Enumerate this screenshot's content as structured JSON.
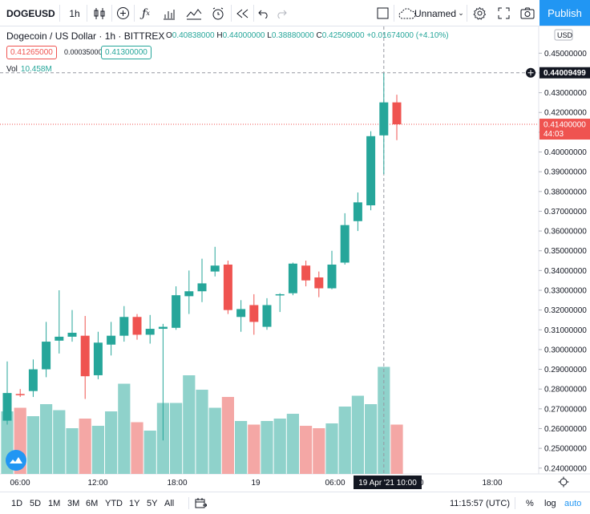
{
  "toolbar": {
    "symbol": "DOGEUSD",
    "interval": "1h",
    "layout_name": "Unnamed",
    "publish_label": "Publish",
    "icons": [
      "candles-icon",
      "add-compare-icon",
      "indicators-icon",
      "financials-icon",
      "templates-icon",
      "alert-icon",
      "replay-icon",
      "undo-icon",
      "redo-icon",
      "layout-square-icon",
      "cloud-icon",
      "settings-icon",
      "fullscreen-icon",
      "snapshot-icon"
    ]
  },
  "legend": {
    "title": "Dogecoin / US Dollar · 1h · BITTREX",
    "o_key": "O",
    "o": "0.40838000",
    "h_key": "H",
    "h": "0.44000000",
    "l_key": "L",
    "l": "0.38880000",
    "c_key": "C",
    "c": "0.42509000",
    "change": "+0.01674000 (+4.10%)",
    "sell_price": "0.41265000",
    "spread": "0.00035000",
    "buy_price": "0.41300000",
    "vol_label": "Vol",
    "vol_value": "10.458M"
  },
  "price_scale": {
    "currency": "USD",
    "crosshair_price": "0.44009499",
    "last_price": "0.41400000",
    "countdown": "44:03"
  },
  "colors": {
    "up": "#26a69a",
    "down": "#ef5350",
    "vol_up": "#8fd2cb",
    "vol_down": "#f4a7a5",
    "accent": "#2196f3"
  },
  "chart_data": {
    "type": "candlestick",
    "title": "Dogecoin / US Dollar · 1h · BITTREX",
    "y_ticks": [
      "0.24000000",
      "0.25000000",
      "0.26000000",
      "0.27000000",
      "0.28000000",
      "0.29000000",
      "0.30000000",
      "0.31000000",
      "0.32000000",
      "0.33000000",
      "0.34000000",
      "0.35000000",
      "0.36000000",
      "0.37000000",
      "0.38000000",
      "0.39000000",
      "0.40000000",
      "0.41000000",
      "0.42000000",
      "0.43000000",
      "0.44000000",
      "0.45000000"
    ],
    "ylim": [
      0.2328,
      0.4617
    ],
    "x_ticks": [
      "06:00",
      "12:00",
      "18:00",
      "19",
      "06:00",
      "12:00",
      "18:00"
    ],
    "x_crosshair_label": "19 Apr '21   10:00",
    "candles": [
      {
        "o": 0.264,
        "h": 0.294,
        "l": 0.262,
        "c": 0.278,
        "v": 0.52
      },
      {
        "o": 0.2775,
        "h": 0.28,
        "l": 0.276,
        "c": 0.277,
        "v": 0.55
      },
      {
        "o": 0.279,
        "h": 0.295,
        "l": 0.276,
        "c": 0.29,
        "v": 0.48
      },
      {
        "o": 0.29,
        "h": 0.314,
        "l": 0.286,
        "c": 0.304,
        "v": 0.58
      },
      {
        "o": 0.3045,
        "h": 0.33,
        "l": 0.298,
        "c": 0.3065,
        "v": 0.53
      },
      {
        "o": 0.3065,
        "h": 0.32,
        "l": 0.304,
        "c": 0.3085,
        "v": 0.38
      },
      {
        "o": 0.307,
        "h": 0.317,
        "l": 0.275,
        "c": 0.2865,
        "v": 0.46
      },
      {
        "o": 0.287,
        "h": 0.309,
        "l": 0.285,
        "c": 0.3035,
        "v": 0.4
      },
      {
        "o": 0.3025,
        "h": 0.314,
        "l": 0.297,
        "c": 0.307,
        "v": 0.52
      },
      {
        "o": 0.307,
        "h": 0.322,
        "l": 0.304,
        "c": 0.3165,
        "v": 0.75
      },
      {
        "o": 0.3165,
        "h": 0.318,
        "l": 0.305,
        "c": 0.3075,
        "v": 0.43
      },
      {
        "o": 0.3075,
        "h": 0.3175,
        "l": 0.303,
        "c": 0.3105,
        "v": 0.36
      },
      {
        "o": 0.3105,
        "h": 0.313,
        "l": 0.254,
        "c": 0.3115,
        "v": 0.59
      },
      {
        "o": 0.311,
        "h": 0.332,
        "l": 0.31,
        "c": 0.3275,
        "v": 0.59
      },
      {
        "o": 0.327,
        "h": 0.34,
        "l": 0.318,
        "c": 0.3295,
        "v": 0.82
      },
      {
        "o": 0.3295,
        "h": 0.346,
        "l": 0.324,
        "c": 0.3335,
        "v": 0.7
      },
      {
        "o": 0.3395,
        "h": 0.352,
        "l": 0.337,
        "c": 0.3425,
        "v": 0.55
      },
      {
        "o": 0.343,
        "h": 0.345,
        "l": 0.318,
        "c": 0.32,
        "v": 0.64
      },
      {
        "o": 0.3165,
        "h": 0.325,
        "l": 0.309,
        "c": 0.3205,
        "v": 0.44
      },
      {
        "o": 0.3225,
        "h": 0.328,
        "l": 0.3075,
        "c": 0.314,
        "v": 0.41
      },
      {
        "o": 0.3115,
        "h": 0.326,
        "l": 0.31,
        "c": 0.3225,
        "v": 0.44
      },
      {
        "o": 0.3275,
        "h": 0.3285,
        "l": 0.319,
        "c": 0.328,
        "v": 0.46
      },
      {
        "o": 0.3285,
        "h": 0.344,
        "l": 0.3275,
        "c": 0.3435,
        "v": 0.5
      },
      {
        "o": 0.3425,
        "h": 0.345,
        "l": 0.332,
        "c": 0.335,
        "v": 0.4
      },
      {
        "o": 0.3365,
        "h": 0.3395,
        "l": 0.3265,
        "c": 0.331,
        "v": 0.38
      },
      {
        "o": 0.331,
        "h": 0.35,
        "l": 0.3305,
        "c": 0.343,
        "v": 0.42
      },
      {
        "o": 0.344,
        "h": 0.369,
        "l": 0.343,
        "c": 0.363,
        "v": 0.56
      },
      {
        "o": 0.365,
        "h": 0.3795,
        "l": 0.36,
        "c": 0.3745,
        "v": 0.65
      },
      {
        "o": 0.373,
        "h": 0.4105,
        "l": 0.3705,
        "c": 0.408,
        "v": 0.58
      },
      {
        "o": 0.4084,
        "h": 0.44,
        "l": 0.3888,
        "c": 0.4251,
        "v": 0.89
      },
      {
        "o": 0.4251,
        "h": 0.429,
        "l": 0.406,
        "c": 0.414,
        "v": 0.41
      }
    ],
    "volume_unit_label": "Vol 10.458M"
  },
  "bottombar": {
    "ranges": [
      "1D",
      "5D",
      "1M",
      "3M",
      "6M",
      "YTD",
      "1Y",
      "5Y",
      "All"
    ],
    "time": "11:15:57 (UTC)",
    "percent": "%",
    "log": "log",
    "auto": "auto"
  }
}
